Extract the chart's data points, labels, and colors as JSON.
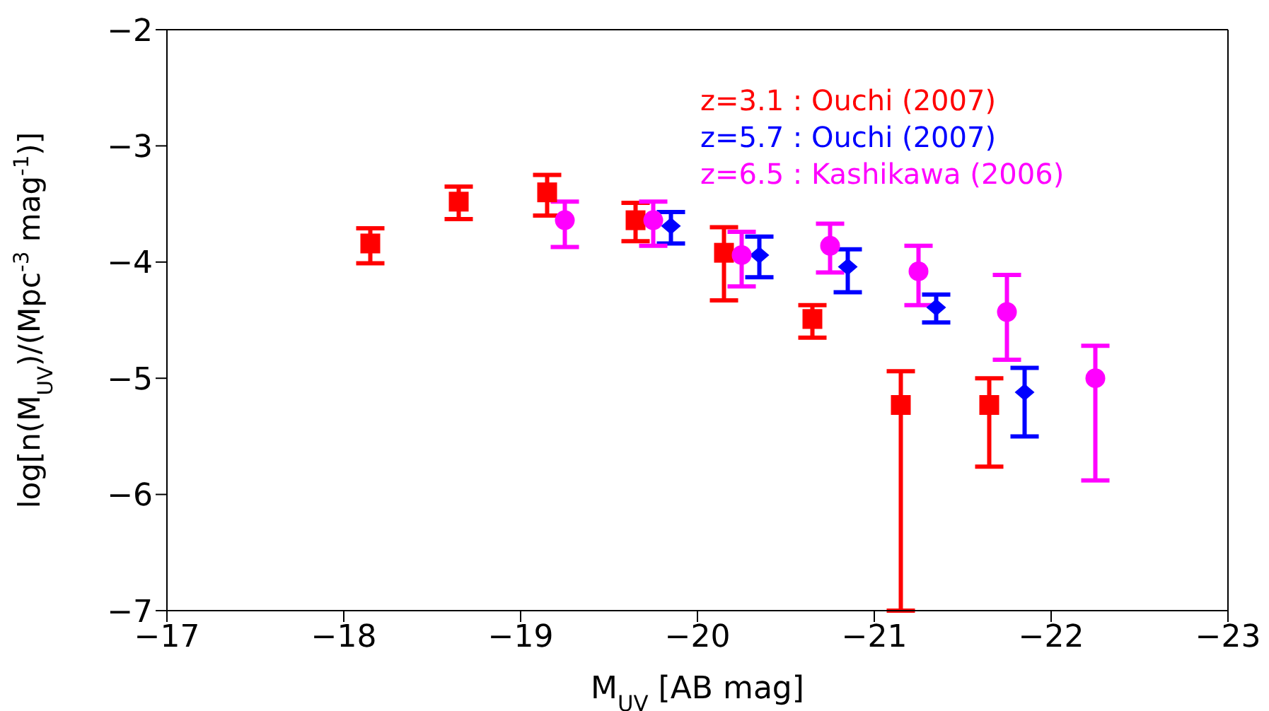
{
  "chart_data": {
    "type": "scatter",
    "xlabel": "M$_{UV}$ [AB mag]",
    "ylabel": "log[n(M$_{UV}$)/(Mpc$^{-3}$ mag$^{-1}$)]",
    "xlim": [
      -17,
      -23
    ],
    "xticks": [
      -17,
      -18,
      -19,
      -20,
      -21,
      -22,
      -23
    ],
    "ylim": [
      -7,
      -2
    ],
    "yticks": [
      -7,
      -6,
      -5,
      -4,
      -3,
      -2
    ],
    "legend": "top right",
    "series": [
      {
        "name": "z=3.1 : Ouchi (2007)",
        "color": "#ff0000",
        "marker": "square",
        "x": [
          -18.15,
          -18.65,
          -19.15,
          -19.65,
          -20.15,
          -20.65,
          -21.15,
          -21.65
        ],
        "values": [
          -3.84,
          -3.48,
          -3.4,
          -3.64,
          -3.92,
          -4.49,
          -5.23,
          -5.23
        ],
        "errors": [
          [
            -4.01,
            -3.71
          ],
          [
            -3.63,
            -3.35
          ],
          [
            -3.6,
            -3.25
          ],
          [
            -3.82,
            -3.49
          ],
          [
            -4.33,
            -3.7
          ],
          [
            -4.65,
            -4.37
          ],
          [
            -7,
            -4.94
          ],
          [
            -5.76,
            -5.0
          ]
        ]
      },
      {
        "name": "z=5.7 : Ouchi (2007)",
        "color": "#0000ff",
        "marker": "diamond",
        "x": [
          -19.85,
          -20.35,
          -20.85,
          -21.35,
          -21.85
        ],
        "values": [
          -3.69,
          -3.94,
          -4.04,
          -4.39,
          -5.12
        ],
        "errors": [
          [
            -3.84,
            -3.57
          ],
          [
            -4.13,
            -3.78
          ],
          [
            -4.26,
            -3.89
          ],
          [
            -4.52,
            -4.28
          ],
          [
            -5.5,
            -4.91
          ]
        ]
      },
      {
        "name": "z=6.5 : Kashikawa (2006)",
        "color": "#ff00ff",
        "marker": "circle",
        "x": [
          -19.25,
          -19.75,
          -20.25,
          -20.75,
          -21.25,
          -21.75,
          -22.25
        ],
        "values": [
          -3.64,
          -3.64,
          -3.94,
          -3.86,
          -4.08,
          -4.43,
          -5.0
        ],
        "errors": [
          [
            -3.87,
            -3.48
          ],
          [
            -3.86,
            -3.48
          ],
          [
            -4.21,
            -3.74
          ],
          [
            -4.09,
            -3.67
          ],
          [
            -4.37,
            -3.86
          ],
          [
            -4.84,
            -4.11
          ],
          [
            -5.88,
            -4.72
          ]
        ]
      }
    ]
  }
}
